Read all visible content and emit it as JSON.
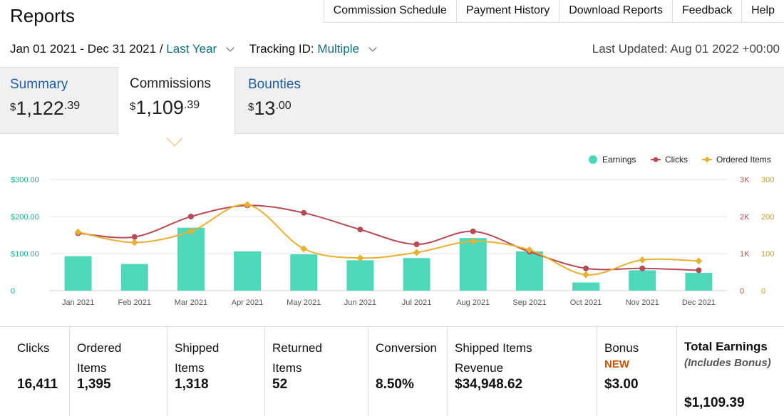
{
  "page_title": "Reports",
  "nav": [
    "Commission Schedule",
    "Payment History",
    "Download Reports",
    "Feedback",
    "Help"
  ],
  "filters": {
    "date_range": "Jan 01 2021 - Dec 31 2021 /",
    "period": "Last Year",
    "tracking_label": "Tracking ID:",
    "tracking_value": "Multiple",
    "last_updated": "Last Updated: Aug 01 2022 +00:00"
  },
  "tabs": [
    {
      "label": "Summary",
      "currency": "$",
      "whole": "1,122",
      "cents": ".39"
    },
    {
      "label": "Commissions",
      "currency": "$",
      "whole": "1,109",
      "cents": ".39"
    },
    {
      "label": "Bounties",
      "currency": "$",
      "whole": "13",
      "cents": ".00"
    }
  ],
  "chart_data": {
    "type": "bar",
    "categories": [
      "Jan 2021",
      "Feb 2021",
      "Mar 2021",
      "Apr 2021",
      "May 2021",
      "Jun 2021",
      "Jul 2021",
      "Aug 2021",
      "Sep 2021",
      "Oct 2021",
      "Nov 2021",
      "Dec 2021"
    ],
    "series": [
      {
        "name": "Earnings",
        "type": "bar",
        "axis": "left",
        "color": "#4dd9b9",
        "values": [
          93,
          72,
          170,
          106,
          98,
          82,
          88,
          142,
          106,
          22,
          55,
          48
        ]
      },
      {
        "name": "Clicks",
        "type": "line",
        "axis": "right1",
        "color": "#b84a55",
        "values": [
          1550,
          1450,
          2000,
          2300,
          2100,
          1650,
          1250,
          1600,
          1050,
          600,
          600,
          550
        ]
      },
      {
        "name": "Ordered Items",
        "type": "line",
        "axis": "right2",
        "color": "#e8b030",
        "values": [
          158,
          130,
          160,
          232,
          113,
          88,
          103,
          133,
          110,
          43,
          83,
          80
        ]
      }
    ],
    "y_left": {
      "ticks": [
        "$300.00",
        "$200.00",
        "$100.00",
        "0"
      ],
      "range": [
        0,
        300
      ],
      "color": "#1aab8b"
    },
    "y_right1": {
      "ticks": [
        "3K",
        "2K",
        "1K",
        "0"
      ],
      "range": [
        0,
        3000
      ],
      "color": "#b84a55"
    },
    "y_right2": {
      "ticks": [
        "300",
        "200",
        "100",
        "0"
      ],
      "range": [
        0,
        300
      ],
      "color": "#c89a2a"
    },
    "legend": [
      "Earnings",
      "Clicks",
      "Ordered Items"
    ],
    "legend_position": "top-right",
    "grid": true
  },
  "stats": [
    {
      "label": "Clicks",
      "value": "16,411"
    },
    {
      "label": "Ordered Items",
      "value": "1,395"
    },
    {
      "label": "Shipped Items",
      "value": "1,318"
    },
    {
      "label": "Returned Items",
      "value": "52"
    },
    {
      "label": "Conversion",
      "value": "8.50%"
    },
    {
      "label": "Shipped Items Revenue",
      "value": "$34,948.62"
    },
    {
      "label": "Bonus",
      "badge": "NEW",
      "value": "$3.00"
    },
    {
      "label": "Total Earnings",
      "sublabel": "(Includes Bonus)",
      "value": "$1,109.39"
    }
  ]
}
